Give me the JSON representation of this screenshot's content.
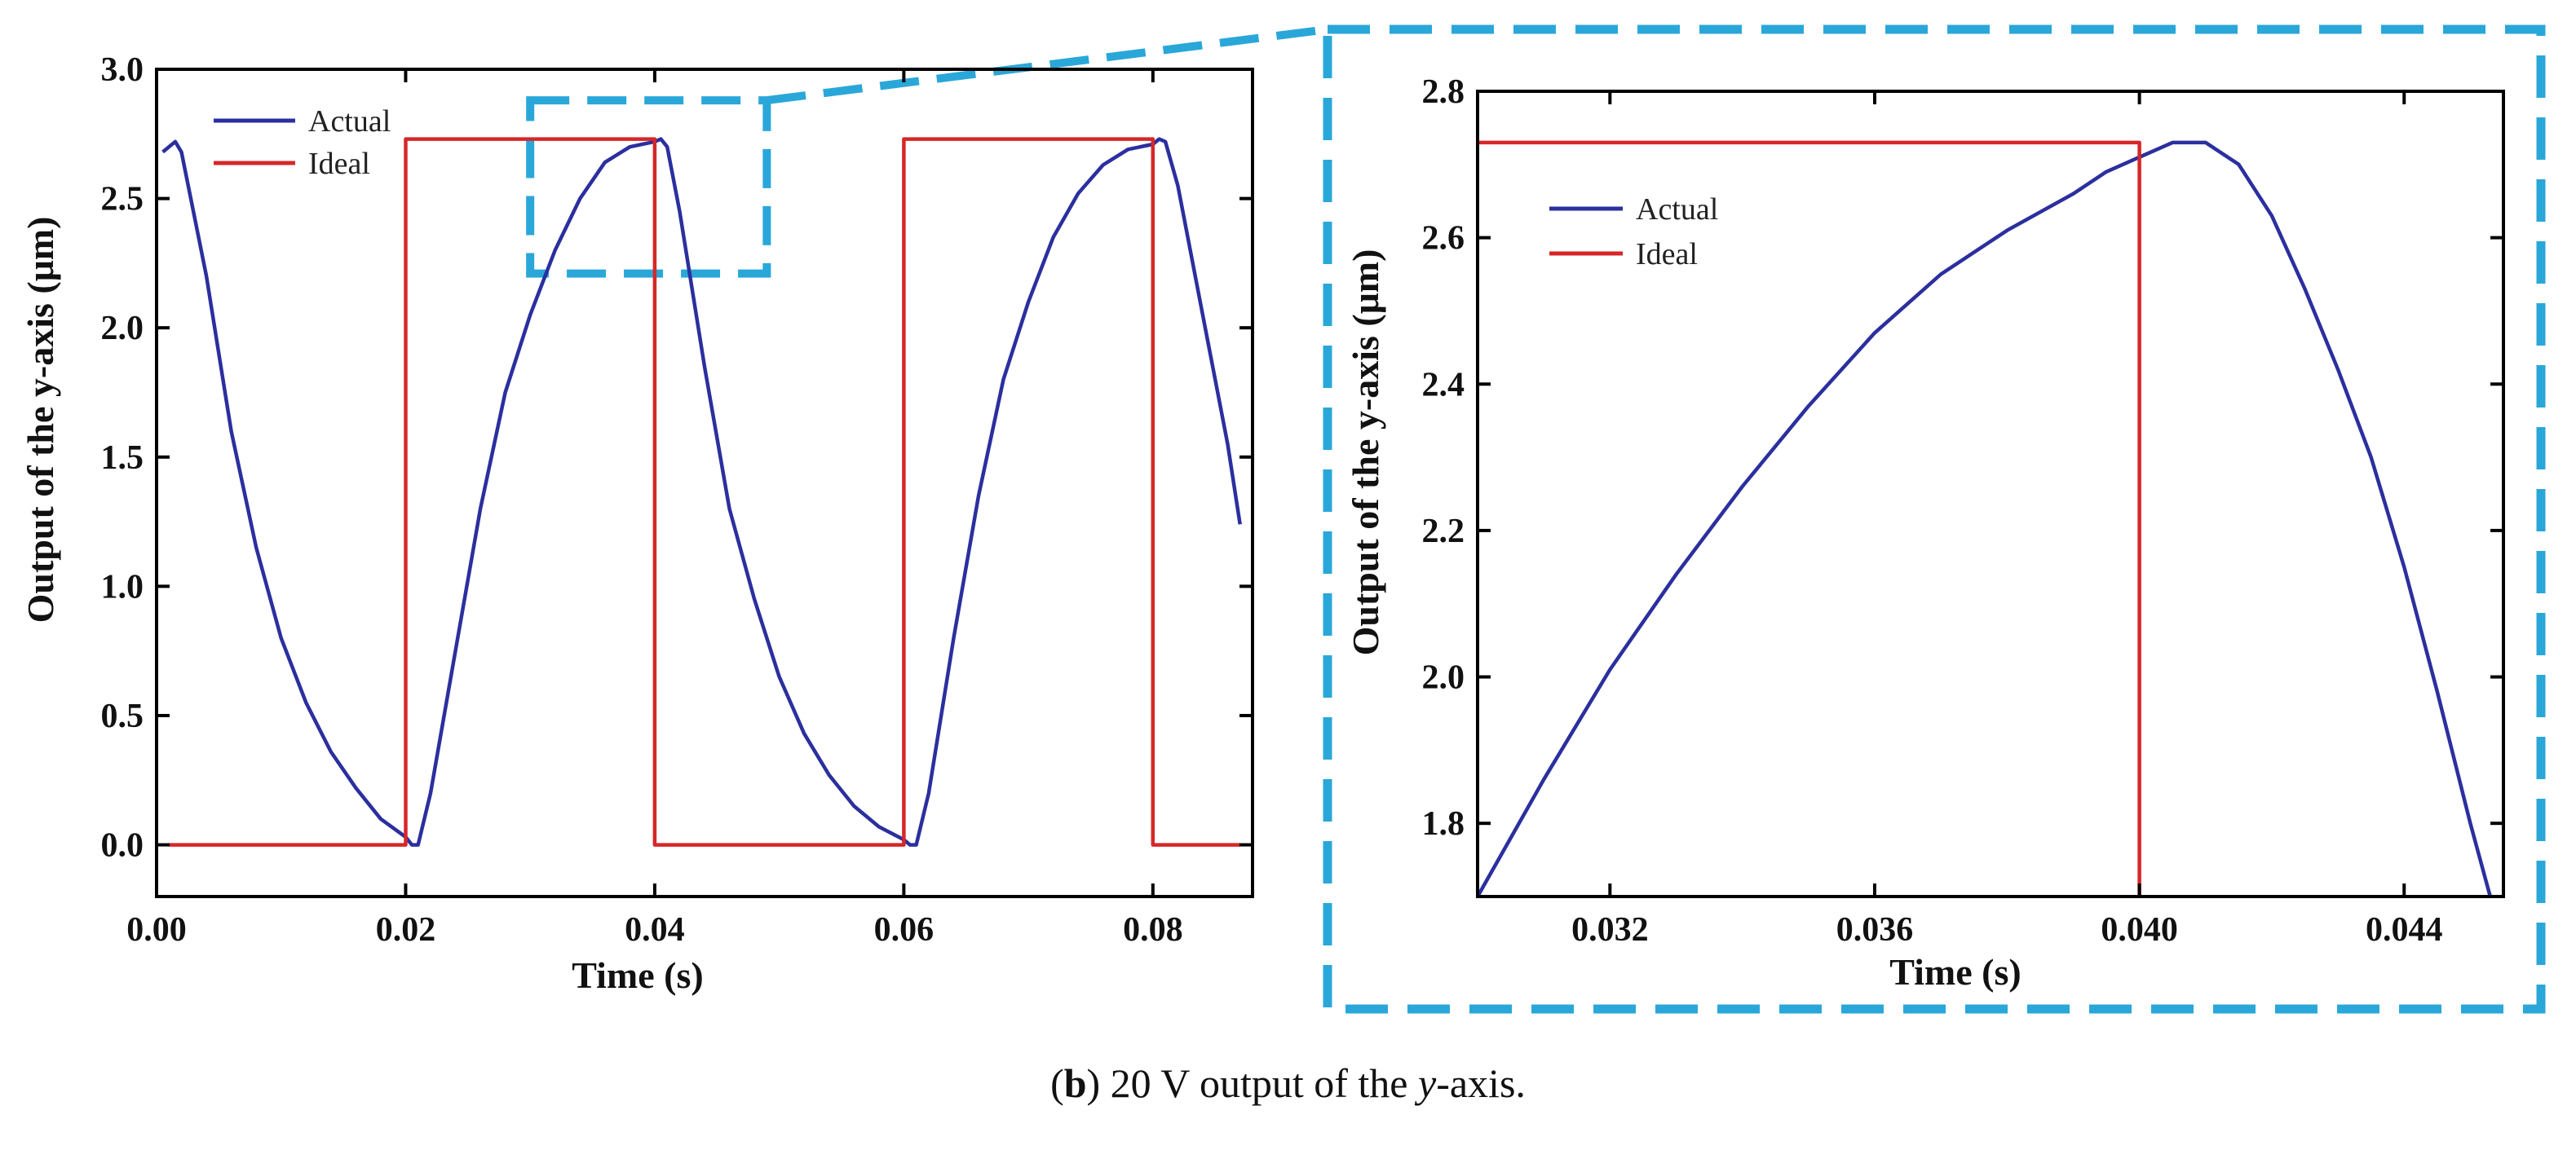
{
  "chart_data": [
    {
      "type": "line",
      "panel": "main",
      "xlabel": "Time (s)",
      "ylabel": "Output of the y-axis (μm)",
      "xlim": [
        0.0,
        0.088
      ],
      "ylim": [
        -0.2,
        3.0
      ],
      "xticks": [
        0.0,
        0.02,
        0.04,
        0.06,
        0.08
      ],
      "xtick_labels": [
        "0.00",
        "0.02",
        "0.04",
        "0.06",
        "0.08"
      ],
      "yticks": [
        0.0,
        0.5,
        1.0,
        1.5,
        2.0,
        2.5,
        3.0
      ],
      "ytick_labels": [
        "0.0",
        "0.5",
        "1.0",
        "1.5",
        "2.0",
        "2.5",
        "3.0"
      ],
      "legend_position": "top-left",
      "series": [
        {
          "name": "Actual",
          "color": "#2b2f9e",
          "x": [
            0.0005,
            0.0015,
            0.002,
            0.004,
            0.006,
            0.008,
            0.01,
            0.012,
            0.014,
            0.016,
            0.018,
            0.02,
            0.0205,
            0.021,
            0.022,
            0.024,
            0.026,
            0.028,
            0.03,
            0.032,
            0.034,
            0.036,
            0.038,
            0.04,
            0.0405,
            0.041,
            0.042,
            0.044,
            0.046,
            0.048,
            0.05,
            0.052,
            0.054,
            0.056,
            0.058,
            0.06,
            0.0605,
            0.061,
            0.062,
            0.064,
            0.066,
            0.068,
            0.07,
            0.072,
            0.074,
            0.076,
            0.078,
            0.08,
            0.0805,
            0.081,
            0.082,
            0.084,
            0.086,
            0.087
          ],
          "y": [
            2.68,
            2.72,
            2.68,
            2.2,
            1.6,
            1.15,
            0.8,
            0.55,
            0.36,
            0.22,
            0.1,
            0.03,
            0.0,
            0.0,
            0.2,
            0.75,
            1.3,
            1.75,
            2.05,
            2.3,
            2.5,
            2.64,
            2.7,
            2.72,
            2.73,
            2.7,
            2.45,
            1.85,
            1.3,
            0.95,
            0.65,
            0.43,
            0.27,
            0.15,
            0.07,
            0.02,
            0.0,
            0.0,
            0.2,
            0.8,
            1.35,
            1.8,
            2.1,
            2.35,
            2.52,
            2.63,
            2.69,
            2.71,
            2.73,
            2.72,
            2.55,
            2.05,
            1.55,
            1.24
          ]
        },
        {
          "name": "Ideal",
          "color": "#d62728",
          "x": [
            0.001,
            0.02,
            0.02,
            0.04,
            0.04,
            0.06,
            0.06,
            0.08,
            0.08,
            0.087
          ],
          "y": [
            0.0,
            0.0,
            2.73,
            2.73,
            0.0,
            0.0,
            2.73,
            2.73,
            0.0,
            0.0
          ]
        }
      ],
      "zoom_box": {
        "xlim": [
          0.03,
          0.049
        ],
        "ylim": [
          2.21,
          2.88
        ]
      }
    },
    {
      "type": "line",
      "panel": "inset",
      "xlabel": "Time (s)",
      "ylabel": "Output of the y-axis (μm)",
      "xlim": [
        0.03,
        0.0455
      ],
      "ylim": [
        1.7,
        2.8
      ],
      "xticks": [
        0.032,
        0.036,
        0.04,
        0.044
      ],
      "xtick_labels": [
        "0.032",
        "0.036",
        "0.040",
        "0.044"
      ],
      "yticks": [
        1.8,
        2.0,
        2.2,
        2.4,
        2.6,
        2.8
      ],
      "ytick_labels": [
        "1.8",
        "2.0",
        "2.2",
        "2.4",
        "2.6",
        "2.8"
      ],
      "legend_position": "top-left",
      "series": [
        {
          "name": "Actual",
          "color": "#2b2f9e",
          "x": [
            0.03,
            0.031,
            0.032,
            0.033,
            0.034,
            0.035,
            0.036,
            0.037,
            0.038,
            0.039,
            0.0395,
            0.04,
            0.0405,
            0.041,
            0.0415,
            0.042,
            0.0425,
            0.043,
            0.0435,
            0.044,
            0.0445,
            0.045,
            0.0453
          ],
          "y": [
            1.7,
            1.86,
            2.01,
            2.14,
            2.26,
            2.37,
            2.47,
            2.55,
            2.61,
            2.66,
            2.69,
            2.71,
            2.73,
            2.73,
            2.7,
            2.63,
            2.53,
            2.42,
            2.3,
            2.15,
            1.98,
            1.8,
            1.7
          ]
        },
        {
          "name": "Ideal",
          "color": "#d62728",
          "x": [
            0.03,
            0.04,
            0.04
          ],
          "y": [
            2.73,
            2.73,
            1.7
          ]
        }
      ]
    }
  ],
  "caption": {
    "prefix": "(",
    "letter": "b",
    "middle": ") 20 V output of the ",
    "axis": "y",
    "suffix": "-axis."
  },
  "colors": {
    "dash_box": "#2aa7d9",
    "frame": "#000000"
  }
}
